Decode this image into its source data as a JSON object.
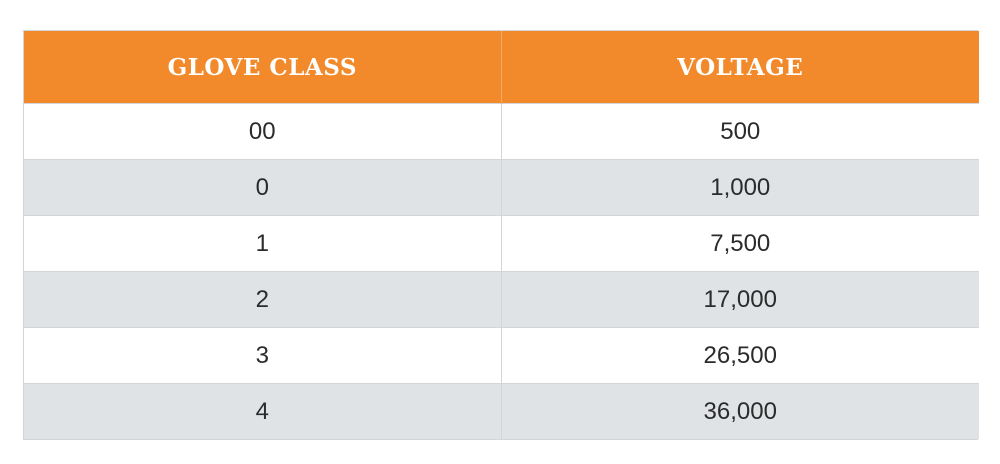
{
  "table": {
    "headers": [
      "GLOVE CLASS",
      "VOLTAGE"
    ],
    "rows": [
      {
        "glove_class": "00",
        "voltage": "500"
      },
      {
        "glove_class": "0",
        "voltage": "1,000"
      },
      {
        "glove_class": "1",
        "voltage": "7,500"
      },
      {
        "glove_class": "2",
        "voltage": "17,000"
      },
      {
        "glove_class": "3",
        "voltage": "26,500"
      },
      {
        "glove_class": "4",
        "voltage": "36,000"
      }
    ]
  },
  "colors": {
    "header_bg": "#f28a2b",
    "header_text": "#ffffff",
    "row_alt_bg": "#e0e3e6",
    "row_bg": "#ffffff"
  }
}
